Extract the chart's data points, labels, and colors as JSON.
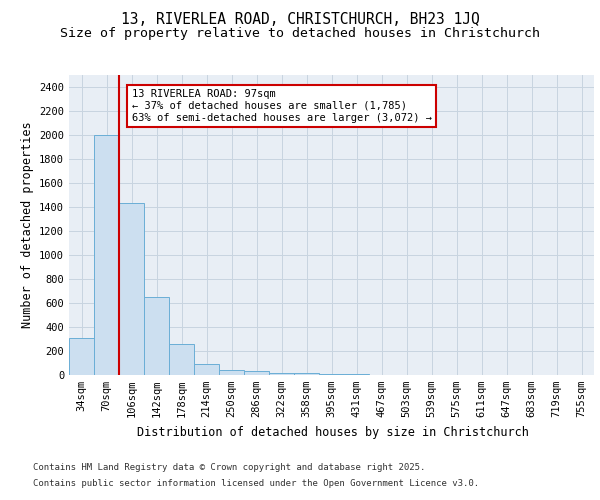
{
  "title": "13, RIVERLEA ROAD, CHRISTCHURCH, BH23 1JQ",
  "subtitle": "Size of property relative to detached houses in Christchurch",
  "xlabel": "Distribution of detached houses by size in Christchurch",
  "ylabel": "Number of detached properties",
  "categories": [
    "34sqm",
    "70sqm",
    "106sqm",
    "142sqm",
    "178sqm",
    "214sqm",
    "250sqm",
    "286sqm",
    "322sqm",
    "358sqm",
    "395sqm",
    "431sqm",
    "467sqm",
    "503sqm",
    "539sqm",
    "575sqm",
    "611sqm",
    "647sqm",
    "683sqm",
    "719sqm",
    "755sqm"
  ],
  "values": [
    310,
    2000,
    1430,
    650,
    260,
    90,
    45,
    30,
    20,
    15,
    10,
    5,
    3,
    2,
    1,
    0,
    0,
    0,
    0,
    0,
    0
  ],
  "bar_color": "#ccdff0",
  "bar_edge_color": "#6aaed6",
  "grid_color": "#c8d4e0",
  "bg_color": "#e8eef5",
  "vline_color": "#cc0000",
  "annotation_text_line1": "13 RIVERLEA ROAD: 97sqm",
  "annotation_text_line2": "← 37% of detached houses are smaller (1,785)",
  "annotation_text_line3": "63% of semi-detached houses are larger (3,072) →",
  "ylim": [
    0,
    2500
  ],
  "yticks": [
    0,
    200,
    400,
    600,
    800,
    1000,
    1200,
    1400,
    1600,
    1800,
    2000,
    2200,
    2400
  ],
  "footer_line1": "Contains HM Land Registry data © Crown copyright and database right 2025.",
  "footer_line2": "Contains public sector information licensed under the Open Government Licence v3.0.",
  "title_fontsize": 10.5,
  "subtitle_fontsize": 9.5,
  "axis_label_fontsize": 8.5,
  "tick_fontsize": 7.5,
  "annotation_fontsize": 7.5,
  "footer_fontsize": 6.5
}
